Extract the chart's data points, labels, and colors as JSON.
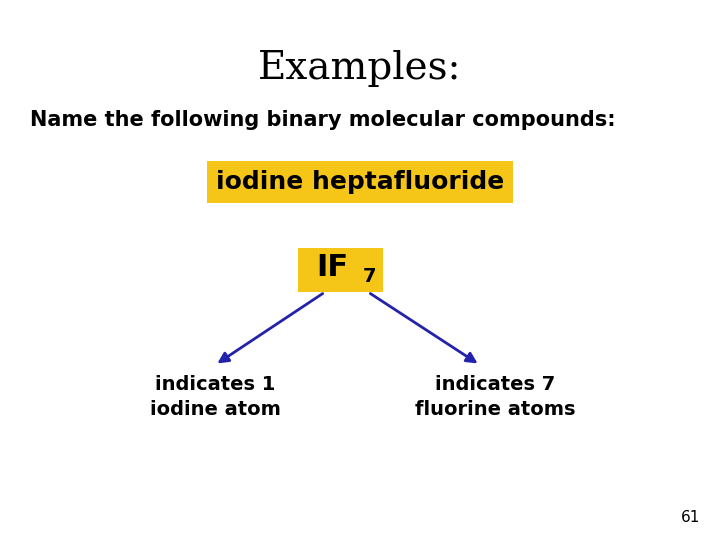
{
  "title": "Examples:",
  "subtitle": "Name the following binary molecular compounds:",
  "highlight_box_text": "iodine heptafluoride",
  "highlight_box_color": "#F5C518",
  "formula_box_text_main": "IF",
  "formula_box_subscript": "7",
  "formula_box_color": "#F5C518",
  "left_label_line1": "indicates 1",
  "left_label_line2": "iodine atom",
  "right_label_line1": "indicates 7",
  "right_label_line2": "fluorine atoms",
  "arrow_color": "#2222AA",
  "text_color": "#000000",
  "bg_color": "#FFFFFF",
  "page_number": "61",
  "title_fontsize": 28,
  "subtitle_fontsize": 15,
  "highlight_text_fontsize": 18,
  "formula_fontsize": 22,
  "formula_sub_fontsize": 14,
  "label_fontsize": 14
}
